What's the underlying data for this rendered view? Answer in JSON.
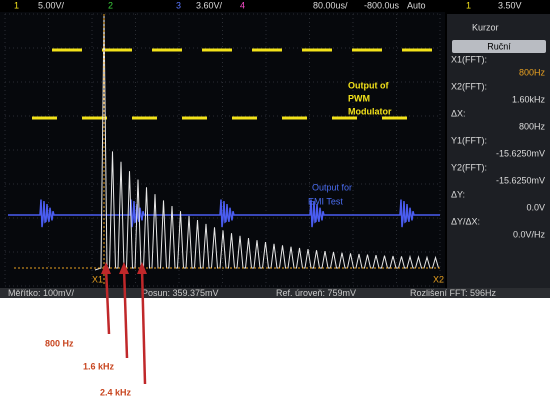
{
  "header": {
    "ch1": "1",
    "ch1_scale": "5.00V/",
    "ch2": "2",
    "ch3": "3",
    "ch3_scale": "3.60V/",
    "ch4": "4",
    "timebase": "80.00us/",
    "delay": "-800.0us",
    "trigger_mode": "Auto",
    "trigger_channel": "1",
    "trigger_level": "3.50V"
  },
  "panel": {
    "title": "Kurzor",
    "mode": "Ruční",
    "items": [
      {
        "label": "X1(FFT):",
        "value": "800Hz"
      },
      {
        "label": "X2(FFT):",
        "value": "1.60kHz"
      },
      {
        "label": "ΔX:",
        "value": "800Hz"
      },
      {
        "label": "Y1(FFT):",
        "value": "-15.6250mV"
      },
      {
        "label": "Y2(FFT):",
        "value": "-15.6250mV"
      },
      {
        "label": "ΔY:",
        "value": "0.0V"
      },
      {
        "label": "ΔY/ΔX:",
        "value": "0.0V/Hz"
      }
    ]
  },
  "footer": {
    "scale": "Měřítko: 100mV/",
    "position": "Posun: 359.375mV",
    "reference": "Ref. úroveň: 759mV",
    "resolution": "Rozlišení FFT: 596Hz"
  },
  "markers": {
    "x1": "X1",
    "x2": "X2"
  },
  "annotations": {
    "pwm": [
      "Output of",
      "PWM",
      "Modulator"
    ],
    "emi": [
      "Output for",
      "EMI Test"
    ],
    "f1": "800 Hz",
    "f2": "1.6 kHz",
    "f3": "2.4 kHz"
  }
}
